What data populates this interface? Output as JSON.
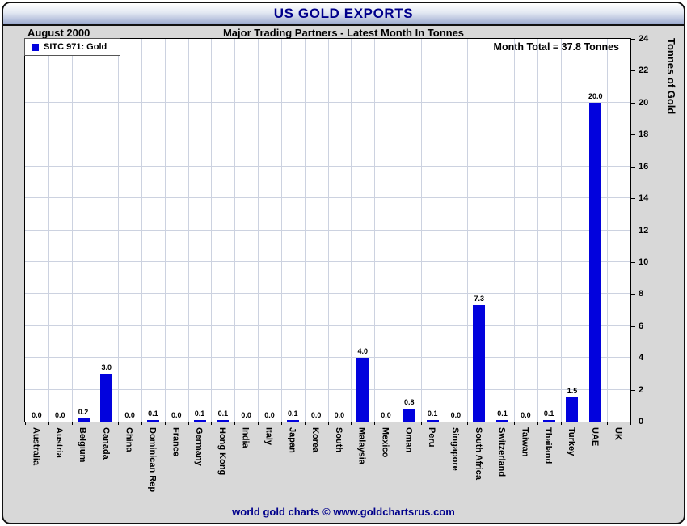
{
  "window": {
    "title": "US GOLD EXPORTS"
  },
  "header": {
    "period": "August 2000",
    "subtitle": "Major Trading Partners - Latest Month In Tonnes",
    "month_total": "Month Total = 37.8 Tonnes"
  },
  "legend": {
    "label": "SITC 971: Gold"
  },
  "footer": {
    "credit": "world gold charts © www.goldchartsrus.com"
  },
  "colors": {
    "bar": "#0202dd",
    "title_text": "#00008b",
    "gridline": "#ccd2e0",
    "frame_background": "#d8d8d8"
  },
  "chart_data": {
    "type": "bar",
    "title": "US GOLD EXPORTS",
    "subtitle": "Major Trading Partners - Latest Month In Tonnes",
    "period": "August 2000",
    "month_total_tonnes": 37.8,
    "categories": [
      "Australia",
      "Austria",
      "Belgium",
      "Canada",
      "China",
      "Dominican Rep",
      "France",
      "Germany",
      "Hong Kong",
      "India",
      "Italy",
      "Japan",
      "Korea",
      "South",
      "Malaysia",
      "Mexico",
      "Oman",
      "Peru",
      "Singapore",
      "South Africa",
      "Switzerland",
      "Taiwan",
      "Thailand",
      "Turkey",
      "UAE",
      "UK"
    ],
    "values": [
      0.0,
      0.0,
      0.2,
      3.0,
      0.0,
      0.1,
      0.0,
      0.1,
      0.1,
      0.0,
      0.0,
      0.1,
      0.0,
      0.0,
      4.0,
      0.0,
      0.8,
      0.1,
      0.0,
      7.3,
      0.1,
      0.0,
      0.1,
      1.5,
      20.0,
      null
    ],
    "bar_labels": [
      "0.0",
      "0.0",
      "0.2",
      "3.0",
      "0.0",
      "0.1",
      "0.0",
      "0.1",
      "0.1",
      "0.0",
      "0.0",
      "0.1",
      "0.0",
      "0.0",
      "4.0",
      "0.0",
      "0.8",
      "0.1",
      "0.0",
      "7.3",
      "0.1",
      "0.0",
      "0.1",
      "1.5",
      "20.0",
      ""
    ],
    "legend": "SITC 971: Gold",
    "legend_position": "top-left",
    "xlabel": "",
    "ylabel": "Tonnes of Gold",
    "ylim": [
      0,
      24
    ],
    "ytick_step": 2,
    "yticks": [
      0,
      2,
      4,
      6,
      8,
      10,
      12,
      14,
      16,
      18,
      20,
      22,
      24
    ],
    "yaxis_side": "right",
    "grid": true,
    "bar_color": "#0202dd"
  }
}
